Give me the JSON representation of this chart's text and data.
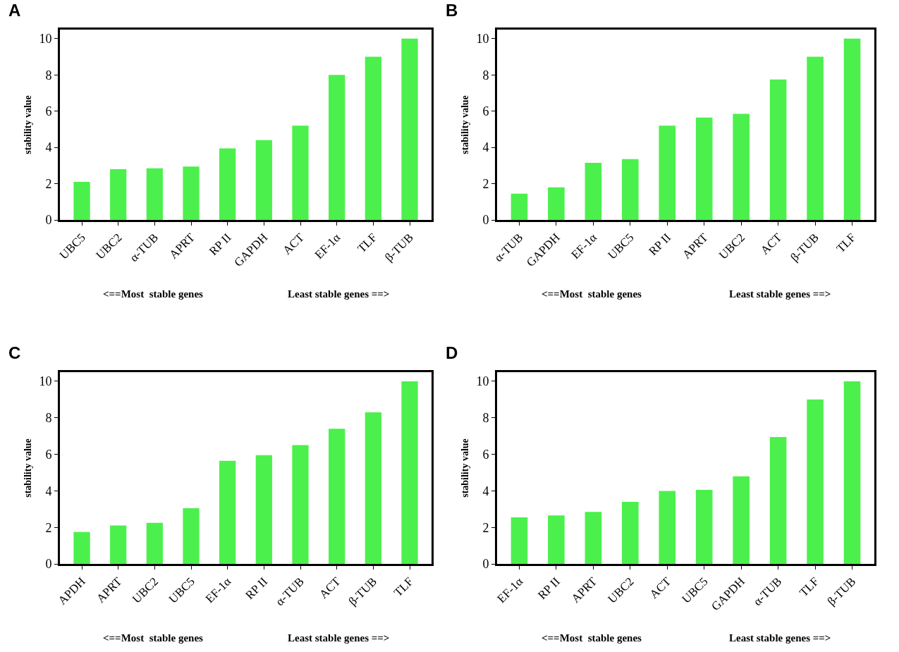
{
  "chart_data": [
    {
      "type": "bar",
      "title": "A",
      "ylabel": "stability value",
      "color": "#4cf04c",
      "ylim": [
        0,
        10.5
      ],
      "yticks": [
        0,
        2,
        4,
        6,
        8,
        10
      ],
      "categories": [
        "UBC5",
        "UBC2",
        "α-TUB",
        "APRT",
        "RP II",
        "GAPDH",
        "ACT",
        "EF-1α",
        "TLF",
        "β-TUB"
      ],
      "values": [
        2.1,
        2.8,
        2.85,
        2.95,
        3.95,
        4.4,
        5.2,
        8.0,
        9.0,
        10.0
      ],
      "annotations": [
        "<==Most  stable genes",
        "Least stable genes ==>"
      ]
    },
    {
      "type": "bar",
      "title": "B",
      "ylabel": "stability value",
      "color": "#4cf04c",
      "ylim": [
        0,
        10.5
      ],
      "yticks": [
        0,
        2,
        4,
        6,
        8,
        10
      ],
      "categories": [
        "α-TUB",
        "GAPDH",
        "EF-1α",
        "UBC5",
        "RP II",
        "APRT",
        "UBC2",
        "ACT",
        "β-TUB",
        "TLF"
      ],
      "values": [
        1.45,
        1.8,
        3.15,
        3.35,
        5.2,
        5.65,
        5.85,
        7.75,
        9.0,
        10.0
      ],
      "annotations": [
        "<==Most  stable genes",
        "Least stable genes ==>"
      ]
    },
    {
      "type": "bar",
      "title": "C",
      "ylabel": "stability value",
      "color": "#4cf04c",
      "ylim": [
        0,
        10.5
      ],
      "yticks": [
        0,
        2,
        4,
        6,
        8,
        10
      ],
      "categories": [
        "APDH",
        "APRT",
        "UBC2",
        "UBC5",
        "EF-1α",
        "RP II",
        "α-TUB",
        "ACT",
        "β-TUB",
        "TLF"
      ],
      "values": [
        1.75,
        2.1,
        2.25,
        3.05,
        5.65,
        5.95,
        6.5,
        7.4,
        8.3,
        10.0
      ],
      "annotations": [
        "<==Most  stable genes",
        "Least stable genes ==>"
      ]
    },
    {
      "type": "bar",
      "title": "D",
      "ylabel": "stability value",
      "color": "#4cf04c",
      "ylim": [
        0,
        10.5
      ],
      "yticks": [
        0,
        2,
        4,
        6,
        8,
        10
      ],
      "categories": [
        "EF-1α",
        "RP II",
        "APRT",
        "UBC2",
        "ACT",
        "UBC5",
        "GAPDH",
        "α-TUB",
        "TLF",
        "β-TUB"
      ],
      "values": [
        2.55,
        2.65,
        2.85,
        3.4,
        4.0,
        4.05,
        4.8,
        6.95,
        9.0,
        10.0
      ],
      "annotations": [
        "<==Most  stable genes",
        "Least stable genes ==>"
      ]
    }
  ]
}
